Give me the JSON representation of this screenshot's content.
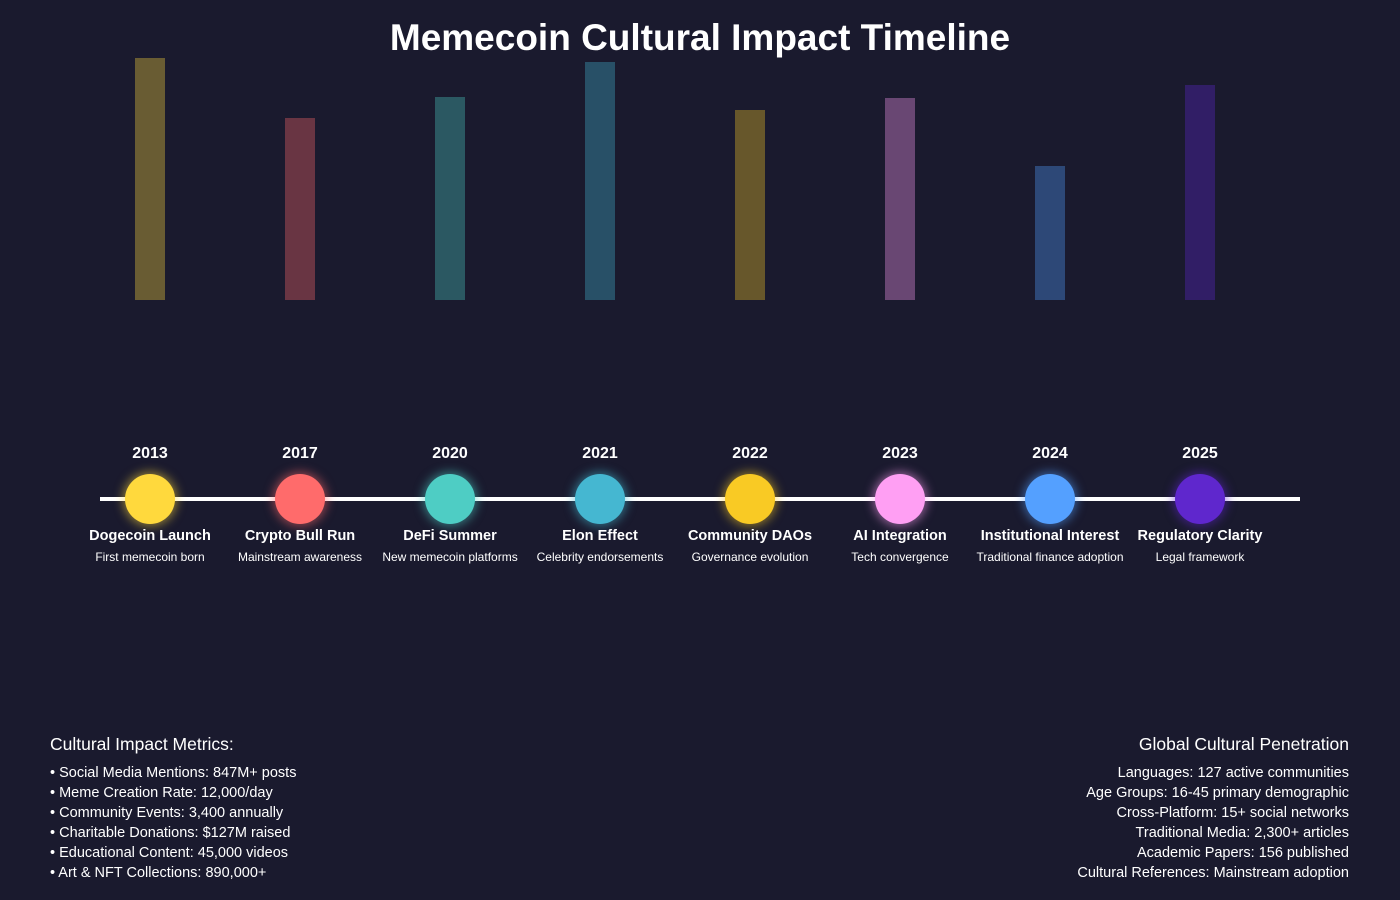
{
  "title": "Memecoin Cultural Impact Timeline",
  "chart_data": {
    "type": "bar",
    "title": "Memecoin Cultural Impact Timeline",
    "categories": [
      "2013",
      "2017",
      "2020",
      "2021",
      "2022",
      "2023",
      "2024",
      "2025"
    ],
    "values": [
      242,
      182,
      203,
      238,
      190,
      202,
      134,
      215
    ],
    "colors": [
      "#ffd93d",
      "#ff6b6b",
      "#4ecdc4",
      "#45b7d1",
      "#f9ca24",
      "#ff9ff3",
      "#54a0ff",
      "#5f27cd"
    ],
    "ylim": [
      0,
      300
    ],
    "grid": false,
    "legend": "none"
  },
  "milestones": [
    {
      "year": "2013",
      "event": "Dogecoin Launch",
      "description": "First memecoin born",
      "color": "#ffd93d"
    },
    {
      "year": "2017",
      "event": "Crypto Bull Run",
      "description": "Mainstream awareness",
      "color": "#ff6b6b"
    },
    {
      "year": "2020",
      "event": "DeFi Summer",
      "description": "New memecoin platforms",
      "color": "#4ecdc4"
    },
    {
      "year": "2021",
      "event": "Elon Effect",
      "description": "Celebrity endorsements",
      "color": "#45b7d1"
    },
    {
      "year": "2022",
      "event": "Community DAOs",
      "description": "Governance evolution",
      "color": "#f9ca24"
    },
    {
      "year": "2023",
      "event": "AI Integration",
      "description": "Tech convergence",
      "color": "#ff9ff3"
    },
    {
      "year": "2024",
      "event": "Institutional Interest",
      "description": "Traditional finance adoption",
      "color": "#54a0ff"
    },
    {
      "year": "2025",
      "event": "Regulatory Clarity",
      "description": "Legal framework",
      "color": "#5f27cd"
    }
  ],
  "metrics": {
    "heading": "Cultural Impact Metrics:",
    "items": [
      "• Social Media Mentions: 847M+ posts",
      "• Meme Creation Rate: 12,000/day",
      "• Community Events: 3,400 annually",
      "• Charitable Donations: $127M raised",
      "• Educational Content: 45,000 videos",
      "• Art & NFT Collections: 890,000+"
    ]
  },
  "penetration": {
    "heading": "Global Cultural Penetration",
    "items": [
      "Languages: 127 active communities",
      "Age Groups: 16-45 primary demographic",
      "Cross-Platform: 15+ social networks",
      "Traditional Media: 2,300+ articles",
      "Academic Papers: 156 published",
      "Cultural References: Mainstream adoption"
    ]
  }
}
